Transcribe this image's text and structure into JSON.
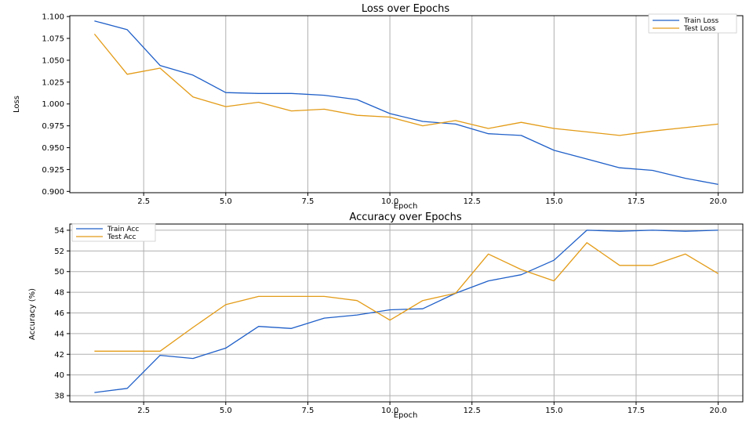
{
  "chart_data": [
    {
      "type": "line",
      "title": "Loss over Epochs",
      "xlabel": "Epoch",
      "ylabel": "Loss",
      "xlim": [
        0.25,
        20.75
      ],
      "ylim": [
        0.8985,
        1.101
      ],
      "xticks": [
        2.5,
        5.0,
        7.5,
        10.0,
        12.5,
        15.0,
        17.5,
        20.0
      ],
      "xtick_labels": [
        "2.5",
        "5.0",
        "7.5",
        "10.0",
        "12.5",
        "15.0",
        "17.5",
        "20.0"
      ],
      "yticks": [
        0.9,
        0.925,
        0.95,
        0.975,
        1.0,
        1.025,
        1.05,
        1.075,
        1.1
      ],
      "ytick_labels": [
        "0.900",
        "0.925",
        "0.950",
        "0.975",
        "1.000",
        "1.025",
        "1.050",
        "1.075",
        "1.100"
      ],
      "grid": "x",
      "legend_position": "top-right",
      "x": [
        1,
        2,
        3,
        4,
        5,
        6,
        7,
        8,
        9,
        10,
        11,
        12,
        13,
        14,
        15,
        16,
        17,
        18,
        19,
        20
      ],
      "series": [
        {
          "name": "Train Loss",
          "color": "#1f5fc8",
          "values": [
            1.095,
            1.085,
            1.044,
            1.033,
            1.013,
            1.012,
            1.012,
            1.01,
            1.005,
            0.989,
            0.98,
            0.977,
            0.966,
            0.964,
            0.947,
            0.937,
            0.927,
            0.924,
            0.915,
            0.908
          ]
        },
        {
          "name": "Test Loss",
          "color": "#e39b17",
          "values": [
            1.08,
            1.034,
            1.041,
            1.008,
            0.997,
            1.002,
            0.992,
            0.994,
            0.987,
            0.985,
            0.975,
            0.981,
            0.972,
            0.979,
            0.972,
            0.968,
            0.964,
            0.969,
            0.973,
            0.977
          ]
        }
      ]
    },
    {
      "type": "line",
      "title": "Accuracy over Epochs",
      "xlabel": "Epoch",
      "ylabel": "Accuracy (%)",
      "xlim": [
        0.25,
        20.75
      ],
      "ylim": [
        37.4,
        54.6
      ],
      "xticks": [
        2.5,
        5.0,
        7.5,
        10.0,
        12.5,
        15.0,
        17.5,
        20.0
      ],
      "xtick_labels": [
        "2.5",
        "5.0",
        "7.5",
        "10.0",
        "12.5",
        "15.0",
        "17.5",
        "20.0"
      ],
      "yticks": [
        38,
        40,
        42,
        44,
        46,
        48,
        50,
        52,
        54
      ],
      "ytick_labels": [
        "38",
        "40",
        "42",
        "44",
        "46",
        "48",
        "50",
        "52",
        "54"
      ],
      "grid": "both",
      "legend_position": "top-left",
      "x": [
        1,
        2,
        3,
        4,
        5,
        6,
        7,
        8,
        9,
        10,
        11,
        12,
        13,
        14,
        15,
        16,
        17,
        18,
        19,
        20
      ],
      "series": [
        {
          "name": "Train Acc",
          "color": "#1f5fc8",
          "values": [
            38.3,
            38.7,
            41.9,
            41.6,
            42.6,
            44.7,
            44.5,
            45.5,
            45.8,
            46.3,
            46.4,
            47.9,
            49.1,
            49.7,
            51.1,
            54.0,
            53.9,
            54.0,
            53.9,
            54.0
          ]
        },
        {
          "name": "Test Acc",
          "color": "#e39b17",
          "values": [
            42.3,
            42.3,
            42.3,
            44.6,
            46.8,
            47.6,
            47.6,
            47.6,
            47.2,
            45.3,
            47.2,
            47.9,
            51.7,
            50.2,
            49.1,
            52.8,
            50.6,
            50.6,
            51.7,
            49.8
          ]
        }
      ]
    }
  ]
}
